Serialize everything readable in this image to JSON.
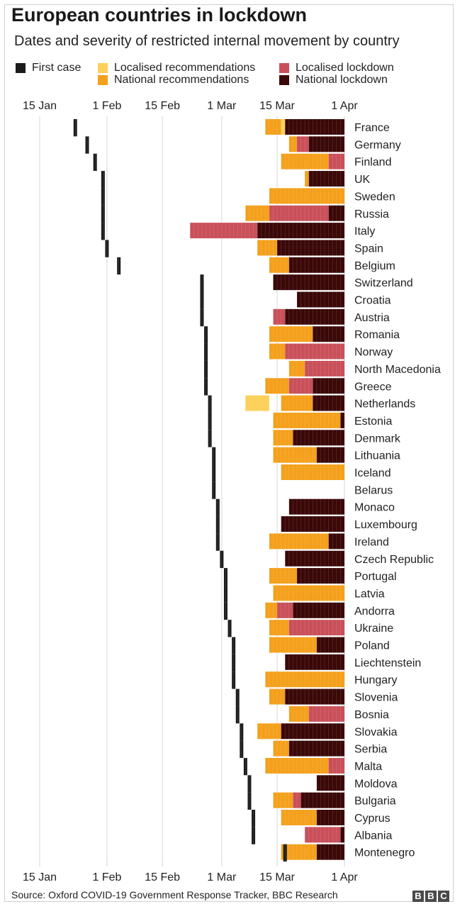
{
  "header": {
    "title": "European countries in lockdown",
    "subtitle": "Dates and severity of restricted internal movement by country"
  },
  "legend": [
    {
      "key": "first_case",
      "label": "First case",
      "color": "#1b1b1b"
    },
    {
      "key": "local_rec",
      "label": "Localised recommendations",
      "color": "#fdd05a"
    },
    {
      "key": "national_rec",
      "label": "National recommendations",
      "color": "#f4a01c"
    },
    {
      "key": "local_lock",
      "label": "Localised lockdown",
      "color": "#c9505a"
    },
    {
      "key": "national_lock",
      "label": "National lockdown",
      "color": "#3b0808"
    }
  ],
  "footer": {
    "source": "Source: Oxford COVID-19 Government Response Tracker, BBC Research",
    "logo_letters": [
      "B",
      "B",
      "C"
    ]
  },
  "chart_data": {
    "type": "bar",
    "orientation": "horizontal-timeline",
    "x_axis": {
      "type": "date",
      "range": [
        "2020-01-15",
        "2020-04-01"
      ],
      "ticks": [
        {
          "date": "2020-01-15",
          "label": "15 Jan"
        },
        {
          "date": "2020-02-01",
          "label": "1 Feb"
        },
        {
          "date": "2020-02-15",
          "label": "15 Feb"
        },
        {
          "date": "2020-03-01",
          "label": "1 Mar"
        },
        {
          "date": "2020-03-15",
          "label": "15 Mar"
        },
        {
          "date": "2020-04-01",
          "label": "1 Apr"
        }
      ],
      "position": "top and bottom"
    },
    "vertical_gridlines": true,
    "countries": [
      {
        "name": "France",
        "first_case": "2020-01-24",
        "segments": [
          {
            "status": "national_rec",
            "from": "2020-03-12",
            "to": "2020-03-16"
          },
          {
            "status": "local_rec",
            "from": "2020-03-16",
            "to": "2020-03-17"
          },
          {
            "status": "national_lock",
            "from": "2020-03-17",
            "to": "2020-04-01"
          }
        ]
      },
      {
        "name": "Germany",
        "first_case": "2020-01-27",
        "segments": [
          {
            "status": "national_rec",
            "from": "2020-03-18",
            "to": "2020-03-20"
          },
          {
            "status": "local_lock",
            "from": "2020-03-20",
            "to": "2020-03-23"
          },
          {
            "status": "national_lock",
            "from": "2020-03-23",
            "to": "2020-04-01"
          }
        ]
      },
      {
        "name": "Finland",
        "first_case": "2020-01-29",
        "segments": [
          {
            "status": "national_rec",
            "from": "2020-03-16",
            "to": "2020-03-28"
          },
          {
            "status": "local_lock",
            "from": "2020-03-28",
            "to": "2020-04-01"
          }
        ]
      },
      {
        "name": "UK",
        "first_case": "2020-01-31",
        "segments": [
          {
            "status": "national_rec",
            "from": "2020-03-22",
            "to": "2020-03-23"
          },
          {
            "status": "national_lock",
            "from": "2020-03-23",
            "to": "2020-04-01"
          }
        ]
      },
      {
        "name": "Sweden",
        "first_case": "2020-01-31",
        "segments": [
          {
            "status": "national_rec",
            "from": "2020-03-13",
            "to": "2020-04-01"
          }
        ]
      },
      {
        "name": "Russia",
        "first_case": "2020-01-31",
        "segments": [
          {
            "status": "national_rec",
            "from": "2020-03-07",
            "to": "2020-03-13"
          },
          {
            "status": "local_lock",
            "from": "2020-03-13",
            "to": "2020-03-28"
          },
          {
            "status": "national_lock",
            "from": "2020-03-28",
            "to": "2020-04-01"
          }
        ]
      },
      {
        "name": "Italy",
        "first_case": "2020-01-31",
        "segments": [
          {
            "status": "local_lock",
            "from": "2020-02-22",
            "to": "2020-03-10"
          },
          {
            "status": "national_lock",
            "from": "2020-03-10",
            "to": "2020-04-01"
          }
        ]
      },
      {
        "name": "Spain",
        "first_case": "2020-02-01",
        "segments": [
          {
            "status": "national_rec",
            "from": "2020-03-10",
            "to": "2020-03-15"
          },
          {
            "status": "national_lock",
            "from": "2020-03-15",
            "to": "2020-04-01"
          }
        ]
      },
      {
        "name": "Belgium",
        "first_case": "2020-02-04",
        "segments": [
          {
            "status": "national_rec",
            "from": "2020-03-13",
            "to": "2020-03-18"
          },
          {
            "status": "national_lock",
            "from": "2020-03-18",
            "to": "2020-04-01"
          }
        ]
      },
      {
        "name": "Switzerland",
        "first_case": "2020-02-25",
        "segments": [
          {
            "status": "national_lock",
            "from": "2020-03-14",
            "to": "2020-04-01"
          }
        ]
      },
      {
        "name": "Croatia",
        "first_case": "2020-02-25",
        "segments": [
          {
            "status": "national_lock",
            "from": "2020-03-20",
            "to": "2020-04-01"
          }
        ]
      },
      {
        "name": "Austria",
        "first_case": "2020-02-25",
        "segments": [
          {
            "status": "local_lock",
            "from": "2020-03-14",
            "to": "2020-03-17"
          },
          {
            "status": "national_lock",
            "from": "2020-03-17",
            "to": "2020-04-01"
          }
        ]
      },
      {
        "name": "Romania",
        "first_case": "2020-02-26",
        "segments": [
          {
            "status": "national_rec",
            "from": "2020-03-13",
            "to": "2020-03-24"
          },
          {
            "status": "national_lock",
            "from": "2020-03-24",
            "to": "2020-04-01"
          }
        ]
      },
      {
        "name": "Norway",
        "first_case": "2020-02-26",
        "segments": [
          {
            "status": "national_rec",
            "from": "2020-03-13",
            "to": "2020-03-17"
          },
          {
            "status": "local_lock",
            "from": "2020-03-17",
            "to": "2020-04-01"
          }
        ]
      },
      {
        "name": "North Macedonia",
        "first_case": "2020-02-26",
        "segments": [
          {
            "status": "national_rec",
            "from": "2020-03-18",
            "to": "2020-03-22"
          },
          {
            "status": "local_lock",
            "from": "2020-03-22",
            "to": "2020-04-01"
          }
        ]
      },
      {
        "name": "Greece",
        "first_case": "2020-02-26",
        "segments": [
          {
            "status": "national_rec",
            "from": "2020-03-12",
            "to": "2020-03-18"
          },
          {
            "status": "local_lock",
            "from": "2020-03-18",
            "to": "2020-03-24"
          },
          {
            "status": "national_lock",
            "from": "2020-03-24",
            "to": "2020-04-01"
          }
        ]
      },
      {
        "name": "Netherlands",
        "first_case": "2020-02-27",
        "segments": [
          {
            "status": "local_rec",
            "from": "2020-03-07",
            "to": "2020-03-13"
          },
          {
            "status": "national_rec",
            "from": "2020-03-16",
            "to": "2020-03-24"
          },
          {
            "status": "national_lock",
            "from": "2020-03-24",
            "to": "2020-04-01"
          }
        ]
      },
      {
        "name": "Estonia",
        "first_case": "2020-02-27",
        "segments": [
          {
            "status": "national_rec",
            "from": "2020-03-14",
            "to": "2020-03-31"
          },
          {
            "status": "national_lock",
            "from": "2020-03-31",
            "to": "2020-04-01"
          }
        ]
      },
      {
        "name": "Denmark",
        "first_case": "2020-02-27",
        "segments": [
          {
            "status": "national_rec",
            "from": "2020-03-14",
            "to": "2020-03-19"
          },
          {
            "status": "national_lock",
            "from": "2020-03-19",
            "to": "2020-04-01"
          }
        ]
      },
      {
        "name": "Lithuania",
        "first_case": "2020-02-28",
        "segments": [
          {
            "status": "national_rec",
            "from": "2020-03-14",
            "to": "2020-03-25"
          },
          {
            "status": "national_lock",
            "from": "2020-03-25",
            "to": "2020-04-01"
          }
        ]
      },
      {
        "name": "Iceland",
        "first_case": "2020-02-28",
        "segments": [
          {
            "status": "national_rec",
            "from": "2020-03-16",
            "to": "2020-04-01"
          }
        ]
      },
      {
        "name": "Belarus",
        "first_case": "2020-02-28",
        "segments": []
      },
      {
        "name": "Monaco",
        "first_case": "2020-02-29",
        "segments": [
          {
            "status": "national_lock",
            "from": "2020-03-18",
            "to": "2020-04-01"
          }
        ]
      },
      {
        "name": "Luxembourg",
        "first_case": "2020-02-29",
        "segments": [
          {
            "status": "national_lock",
            "from": "2020-03-16",
            "to": "2020-04-01"
          }
        ]
      },
      {
        "name": "Ireland",
        "first_case": "2020-02-29",
        "segments": [
          {
            "status": "national_rec",
            "from": "2020-03-13",
            "to": "2020-03-28"
          },
          {
            "status": "national_lock",
            "from": "2020-03-28",
            "to": "2020-04-01"
          }
        ]
      },
      {
        "name": "Czech Republic",
        "first_case": "2020-03-01",
        "segments": [
          {
            "status": "national_lock",
            "from": "2020-03-17",
            "to": "2020-04-01"
          }
        ]
      },
      {
        "name": "Portugal",
        "first_case": "2020-03-02",
        "segments": [
          {
            "status": "national_rec",
            "from": "2020-03-13",
            "to": "2020-03-20"
          },
          {
            "status": "national_lock",
            "from": "2020-03-20",
            "to": "2020-04-01"
          }
        ]
      },
      {
        "name": "Latvia",
        "first_case": "2020-03-02",
        "segments": [
          {
            "status": "national_rec",
            "from": "2020-03-14",
            "to": "2020-04-01"
          }
        ]
      },
      {
        "name": "Andorra",
        "first_case": "2020-03-02",
        "segments": [
          {
            "status": "national_rec",
            "from": "2020-03-12",
            "to": "2020-03-15"
          },
          {
            "status": "local_lock",
            "from": "2020-03-15",
            "to": "2020-03-19"
          },
          {
            "status": "national_lock",
            "from": "2020-03-19",
            "to": "2020-04-01"
          }
        ]
      },
      {
        "name": "Ukraine",
        "first_case": "2020-03-03",
        "segments": [
          {
            "status": "national_rec",
            "from": "2020-03-13",
            "to": "2020-03-18"
          },
          {
            "status": "local_lock",
            "from": "2020-03-18",
            "to": "2020-04-01"
          }
        ]
      },
      {
        "name": "Poland",
        "first_case": "2020-03-04",
        "segments": [
          {
            "status": "national_rec",
            "from": "2020-03-13",
            "to": "2020-03-25"
          },
          {
            "status": "national_lock",
            "from": "2020-03-25",
            "to": "2020-04-01"
          }
        ]
      },
      {
        "name": "Liechtenstein",
        "first_case": "2020-03-04",
        "segments": [
          {
            "status": "national_lock",
            "from": "2020-03-17",
            "to": "2020-04-01"
          }
        ]
      },
      {
        "name": "Hungary",
        "first_case": "2020-03-04",
        "segments": [
          {
            "status": "national_rec",
            "from": "2020-03-12",
            "to": "2020-04-01"
          }
        ]
      },
      {
        "name": "Slovenia",
        "first_case": "2020-03-05",
        "segments": [
          {
            "status": "national_rec",
            "from": "2020-03-13",
            "to": "2020-03-17"
          },
          {
            "status": "national_lock",
            "from": "2020-03-17",
            "to": "2020-04-01"
          }
        ]
      },
      {
        "name": "Bosnia",
        "first_case": "2020-03-05",
        "segments": [
          {
            "status": "national_rec",
            "from": "2020-03-18",
            "to": "2020-03-23"
          },
          {
            "status": "local_lock",
            "from": "2020-03-23",
            "to": "2020-04-01"
          }
        ]
      },
      {
        "name": "Slovakia",
        "first_case": "2020-03-06",
        "segments": [
          {
            "status": "national_rec",
            "from": "2020-03-10",
            "to": "2020-03-16"
          },
          {
            "status": "national_lock",
            "from": "2020-03-16",
            "to": "2020-04-01"
          }
        ]
      },
      {
        "name": "Serbia",
        "first_case": "2020-03-06",
        "segments": [
          {
            "status": "national_rec",
            "from": "2020-03-14",
            "to": "2020-03-18"
          },
          {
            "status": "national_lock",
            "from": "2020-03-18",
            "to": "2020-04-01"
          }
        ]
      },
      {
        "name": "Malta",
        "first_case": "2020-03-07",
        "segments": [
          {
            "status": "national_rec",
            "from": "2020-03-12",
            "to": "2020-03-28"
          },
          {
            "status": "local_lock",
            "from": "2020-03-28",
            "to": "2020-04-01"
          }
        ]
      },
      {
        "name": "Moldova",
        "first_case": "2020-03-08",
        "segments": [
          {
            "status": "national_lock",
            "from": "2020-03-25",
            "to": "2020-04-01"
          }
        ]
      },
      {
        "name": "Bulgaria",
        "first_case": "2020-03-08",
        "segments": [
          {
            "status": "national_rec",
            "from": "2020-03-14",
            "to": "2020-03-19"
          },
          {
            "status": "local_lock",
            "from": "2020-03-19",
            "to": "2020-03-21"
          },
          {
            "status": "national_lock",
            "from": "2020-03-21",
            "to": "2020-04-01"
          }
        ]
      },
      {
        "name": "Cyprus",
        "first_case": "2020-03-09",
        "segments": [
          {
            "status": "national_rec",
            "from": "2020-03-16",
            "to": "2020-03-25"
          },
          {
            "status": "national_lock",
            "from": "2020-03-25",
            "to": "2020-04-01"
          }
        ]
      },
      {
        "name": "Albania",
        "first_case": "2020-03-09",
        "segments": [
          {
            "status": "local_lock",
            "from": "2020-03-22",
            "to": "2020-03-31"
          },
          {
            "status": "national_lock",
            "from": "2020-03-31",
            "to": "2020-04-01"
          }
        ]
      },
      {
        "name": "Montenegro",
        "first_case": "2020-03-17",
        "segments": [
          {
            "status": "national_rec",
            "from": "2020-03-16",
            "to": "2020-03-25"
          },
          {
            "status": "national_lock",
            "from": "2020-03-25",
            "to": "2020-04-01"
          }
        ]
      }
    ]
  }
}
